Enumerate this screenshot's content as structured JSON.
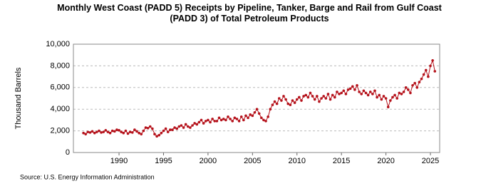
{
  "chart_data": {
    "type": "line",
    "title": "Monthly West Coast (PADD 5) Receipts by Pipeline, Tanker, Barge and Rail from Gulf Coast (PADD 3) of Total Petroleum Products",
    "y_label": "Thousand Barrels",
    "source": "Source: U.S. Energy Information Administration",
    "xlim": [
      1984.87,
      2026.04
    ],
    "xticks": [
      1990,
      1995,
      2000,
      2005,
      2010,
      2015,
      2020,
      2025
    ],
    "ylim": [
      0,
      10000
    ],
    "yticks": [
      0,
      {
        "value": 2000,
        "label": "2,000"
      },
      {
        "value": 4000,
        "label": "4,000"
      },
      {
        "value": 6000,
        "label": "6,000"
      },
      {
        "value": 8000,
        "label": "8,000"
      },
      {
        "value": 10000,
        "label": "10,000"
      }
    ],
    "grid": true,
    "series": [
      {
        "color": "#b5121b",
        "x": [
          1986,
          1986.25,
          1986.5,
          1986.75,
          1987,
          1987.25,
          1987.5,
          1987.75,
          1988,
          1988.25,
          1988.5,
          1988.75,
          1989,
          1989.25,
          1989.5,
          1989.75,
          1990,
          1990.25,
          1990.5,
          1990.75,
          1991,
          1991.25,
          1991.5,
          1991.75,
          1992,
          1992.25,
          1992.5,
          1992.75,
          1993,
          1993.25,
          1993.5,
          1993.75,
          1994,
          1994.25,
          1994.5,
          1994.75,
          1995,
          1995.25,
          1995.5,
          1995.75,
          1996,
          1996.25,
          1996.5,
          1996.75,
          1997,
          1997.25,
          1997.5,
          1997.75,
          1998,
          1998.25,
          1998.5,
          1998.75,
          1999,
          1999.25,
          1999.5,
          1999.75,
          2000,
          2000.25,
          2000.5,
          2000.75,
          2001,
          2001.25,
          2001.5,
          2001.75,
          2002,
          2002.25,
          2002.5,
          2002.75,
          2003,
          2003.25,
          2003.5,
          2003.75,
          2004,
          2004.25,
          2004.5,
          2004.75,
          2005,
          2005.25,
          2005.5,
          2005.75,
          2006,
          2006.25,
          2006.5,
          2006.75,
          2007,
          2007.25,
          2007.5,
          2007.75,
          2008,
          2008.25,
          2008.5,
          2008.75,
          2009,
          2009.25,
          2009.5,
          2009.75,
          2010,
          2010.25,
          2010.5,
          2010.75,
          2011,
          2011.25,
          2011.5,
          2011.75,
          2012,
          2012.25,
          2012.5,
          2012.75,
          2013,
          2013.25,
          2013.5,
          2013.75,
          2014,
          2014.25,
          2014.5,
          2014.75,
          2015,
          2015.25,
          2015.5,
          2015.75,
          2016,
          2016.25,
          2016.5,
          2016.75,
          2017,
          2017.25,
          2017.5,
          2017.75,
          2018,
          2018.25,
          2018.5,
          2018.75,
          2019,
          2019.25,
          2019.5,
          2019.75,
          2020,
          2020.25,
          2020.5,
          2020.75,
          2021,
          2021.25,
          2021.5,
          2021.75,
          2022,
          2022.25,
          2022.5,
          2022.75,
          2023,
          2023.25,
          2023.5,
          2023.75,
          2024,
          2024.25,
          2024.5,
          2024.75,
          2025,
          2025.25,
          2025.5
        ],
        "values": [
          1800,
          1700,
          1900,
          1850,
          1950,
          1800,
          1900,
          2000,
          1850,
          1900,
          2050,
          1900,
          1800,
          2000,
          1950,
          2100,
          2050,
          1900,
          1800,
          2000,
          1750,
          1900,
          1850,
          2100,
          1950,
          1800,
          1700,
          2000,
          2300,
          2250,
          2400,
          2200,
          1700,
          1500,
          1600,
          1800,
          2000,
          2200,
          1900,
          2100,
          2100,
          2300,
          2200,
          2400,
          2500,
          2300,
          2600,
          2400,
          2300,
          2500,
          2700,
          2600,
          2800,
          3000,
          2700,
          2900,
          3000,
          2800,
          3100,
          2900,
          2900,
          3200,
          3000,
          3100,
          3000,
          3300,
          3100,
          2900,
          3200,
          3100,
          2900,
          3300,
          3000,
          3400,
          3200,
          3500,
          3400,
          3700,
          4000,
          3600,
          3200,
          3000,
          2900,
          3300,
          4000,
          4400,
          4700,
          4500,
          5000,
          4800,
          5200,
          4900,
          4500,
          4400,
          4800,
          4600,
          4900,
          5100,
          4800,
          5200,
          5300,
          5100,
          5500,
          5200,
          4900,
          5200,
          4700,
          5000,
          5200,
          5000,
          5400,
          4900,
          5300,
          5100,
          5600,
          5400,
          5500,
          5700,
          5400,
          5800,
          5900,
          6100,
          5800,
          6200,
          5600,
          5400,
          5700,
          5500,
          5300,
          5600,
          5400,
          5700,
          5100,
          5300,
          4900,
          5200,
          5000,
          4200,
          4800,
          5100,
          5300,
          5000,
          5500,
          5400,
          5600,
          6000,
          5800,
          5500,
          6200,
          6400,
          6000,
          6500,
          6800,
          7200,
          7600,
          7000,
          8000,
          8500,
          7500
        ]
      }
    ]
  }
}
